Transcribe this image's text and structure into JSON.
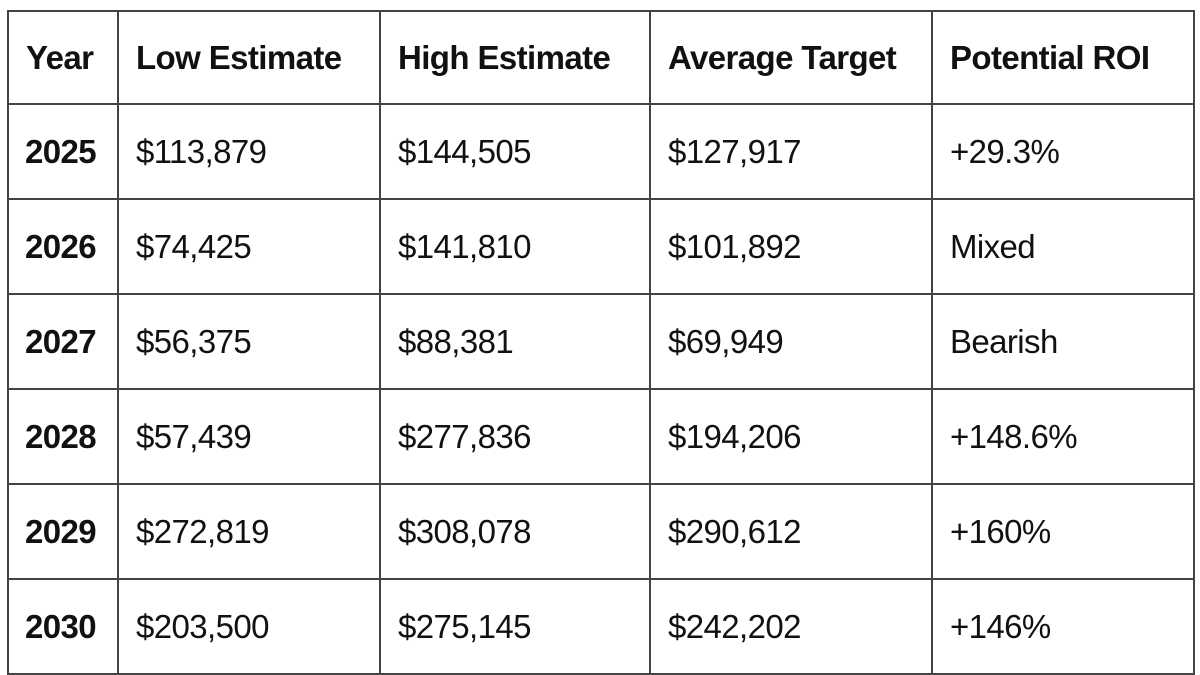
{
  "table": {
    "headers": {
      "year": "Year",
      "low": "Low Estimate",
      "high": "High Estimate",
      "average": "Average Target",
      "roi": "Potential ROI"
    },
    "rows": [
      {
        "year": "2025",
        "low": "$113,879",
        "high": "$144,505",
        "average": "$127,917",
        "roi": "+29.3%"
      },
      {
        "year": "2026",
        "low": "$74,425",
        "high": "$141,810",
        "average": "$101,892",
        "roi": "Mixed"
      },
      {
        "year": "2027",
        "low": "$56,375",
        "high": "$88,381",
        "average": "$69,949",
        "roi": "Bearish"
      },
      {
        "year": "2028",
        "low": "$57,439",
        "high": "$277,836",
        "average": "$194,206",
        "roi": "+148.6%"
      },
      {
        "year": "2029",
        "low": "$272,819",
        "high": "$308,078",
        "average": "$290,612",
        "roi": "+160%"
      },
      {
        "year": "2030",
        "low": "$203,500",
        "high": "$275,145",
        "average": "$242,202",
        "roi": "+146%"
      }
    ]
  }
}
